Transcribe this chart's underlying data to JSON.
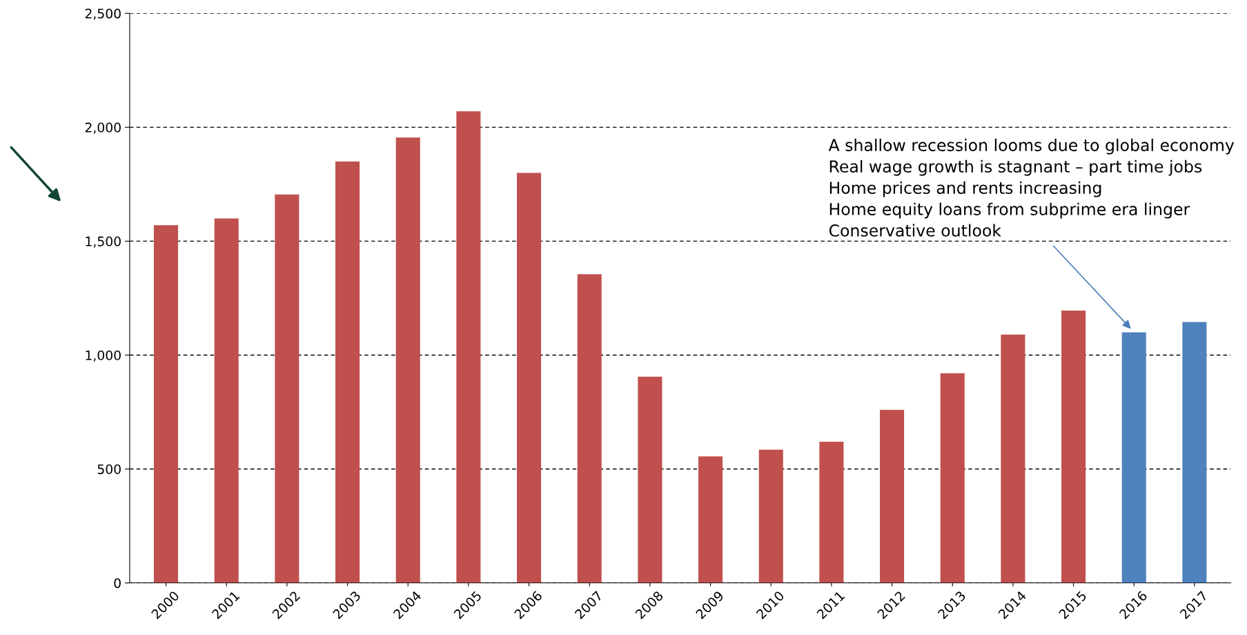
{
  "chart_data": {
    "type": "bar",
    "categories": [
      "2000",
      "2001",
      "2002",
      "2003",
      "2004",
      "2005",
      "2006",
      "2007",
      "2008",
      "2009",
      "2010",
      "2011",
      "2012",
      "2013",
      "2014",
      "2015",
      "2016",
      "2017"
    ],
    "values": [
      1570,
      1600,
      1705,
      1850,
      1955,
      2070,
      1800,
      1355,
      905,
      555,
      585,
      620,
      760,
      920,
      1090,
      1195,
      1100,
      1145
    ],
    "colors": [
      "#c0504d",
      "#c0504d",
      "#c0504d",
      "#c0504d",
      "#c0504d",
      "#c0504d",
      "#c0504d",
      "#c0504d",
      "#c0504d",
      "#c0504d",
      "#c0504d",
      "#c0504d",
      "#c0504d",
      "#c0504d",
      "#c0504d",
      "#c0504d",
      "#4f81bd",
      "#4f81bd"
    ],
    "ylim": [
      0,
      2500
    ],
    "yticks": [
      0,
      {
        "value": 500,
        "label": "500"
      },
      {
        "value": 1000,
        "label": "1,000"
      },
      {
        "value": 1500,
        "label": "1,500"
      },
      {
        "value": 2000,
        "label": "2,000"
      },
      {
        "value": 2500,
        "label": "2,500"
      }
    ],
    "grid": "y",
    "annotations": [
      {
        "text": "A shallow recession looms due to global economy\nReal wage growth is stagnant – part time jobs\nHome prices and rents increasing\nHome equity loans from subprime era linger\nConservative outlook",
        "x": "2016",
        "y": 1100
      }
    ]
  }
}
